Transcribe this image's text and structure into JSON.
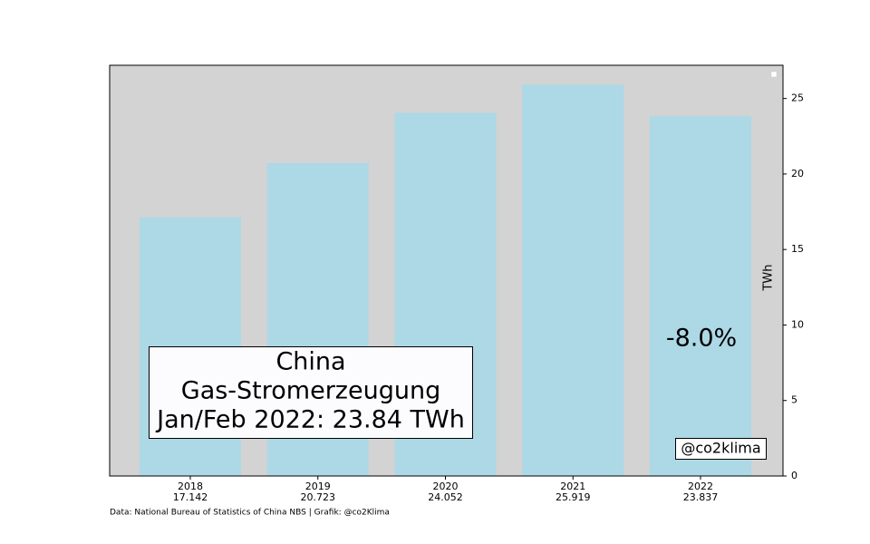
{
  "chart_data": {
    "type": "bar",
    "categories": [
      "2018",
      "2019",
      "2020",
      "2021",
      "2022"
    ],
    "values": [
      17.142,
      20.723,
      24.052,
      25.919,
      23.837
    ],
    "color": "#add8e6",
    "background": "#d3d3d3",
    "ylim": [
      0,
      27.2
    ],
    "yticks": [
      0,
      5,
      10,
      15,
      20,
      25
    ],
    "y_label": "TWh",
    "annotations": {
      "box": [
        "China",
        "Gas-Stromerzeugung",
        "Jan/Feb 2022: 23.84 TWh"
      ],
      "change": "-8.0%",
      "handle": "@co2klima"
    },
    "source": "Data: National Bureau of Statistics of China NBS | Grafik: @co2Klima"
  }
}
